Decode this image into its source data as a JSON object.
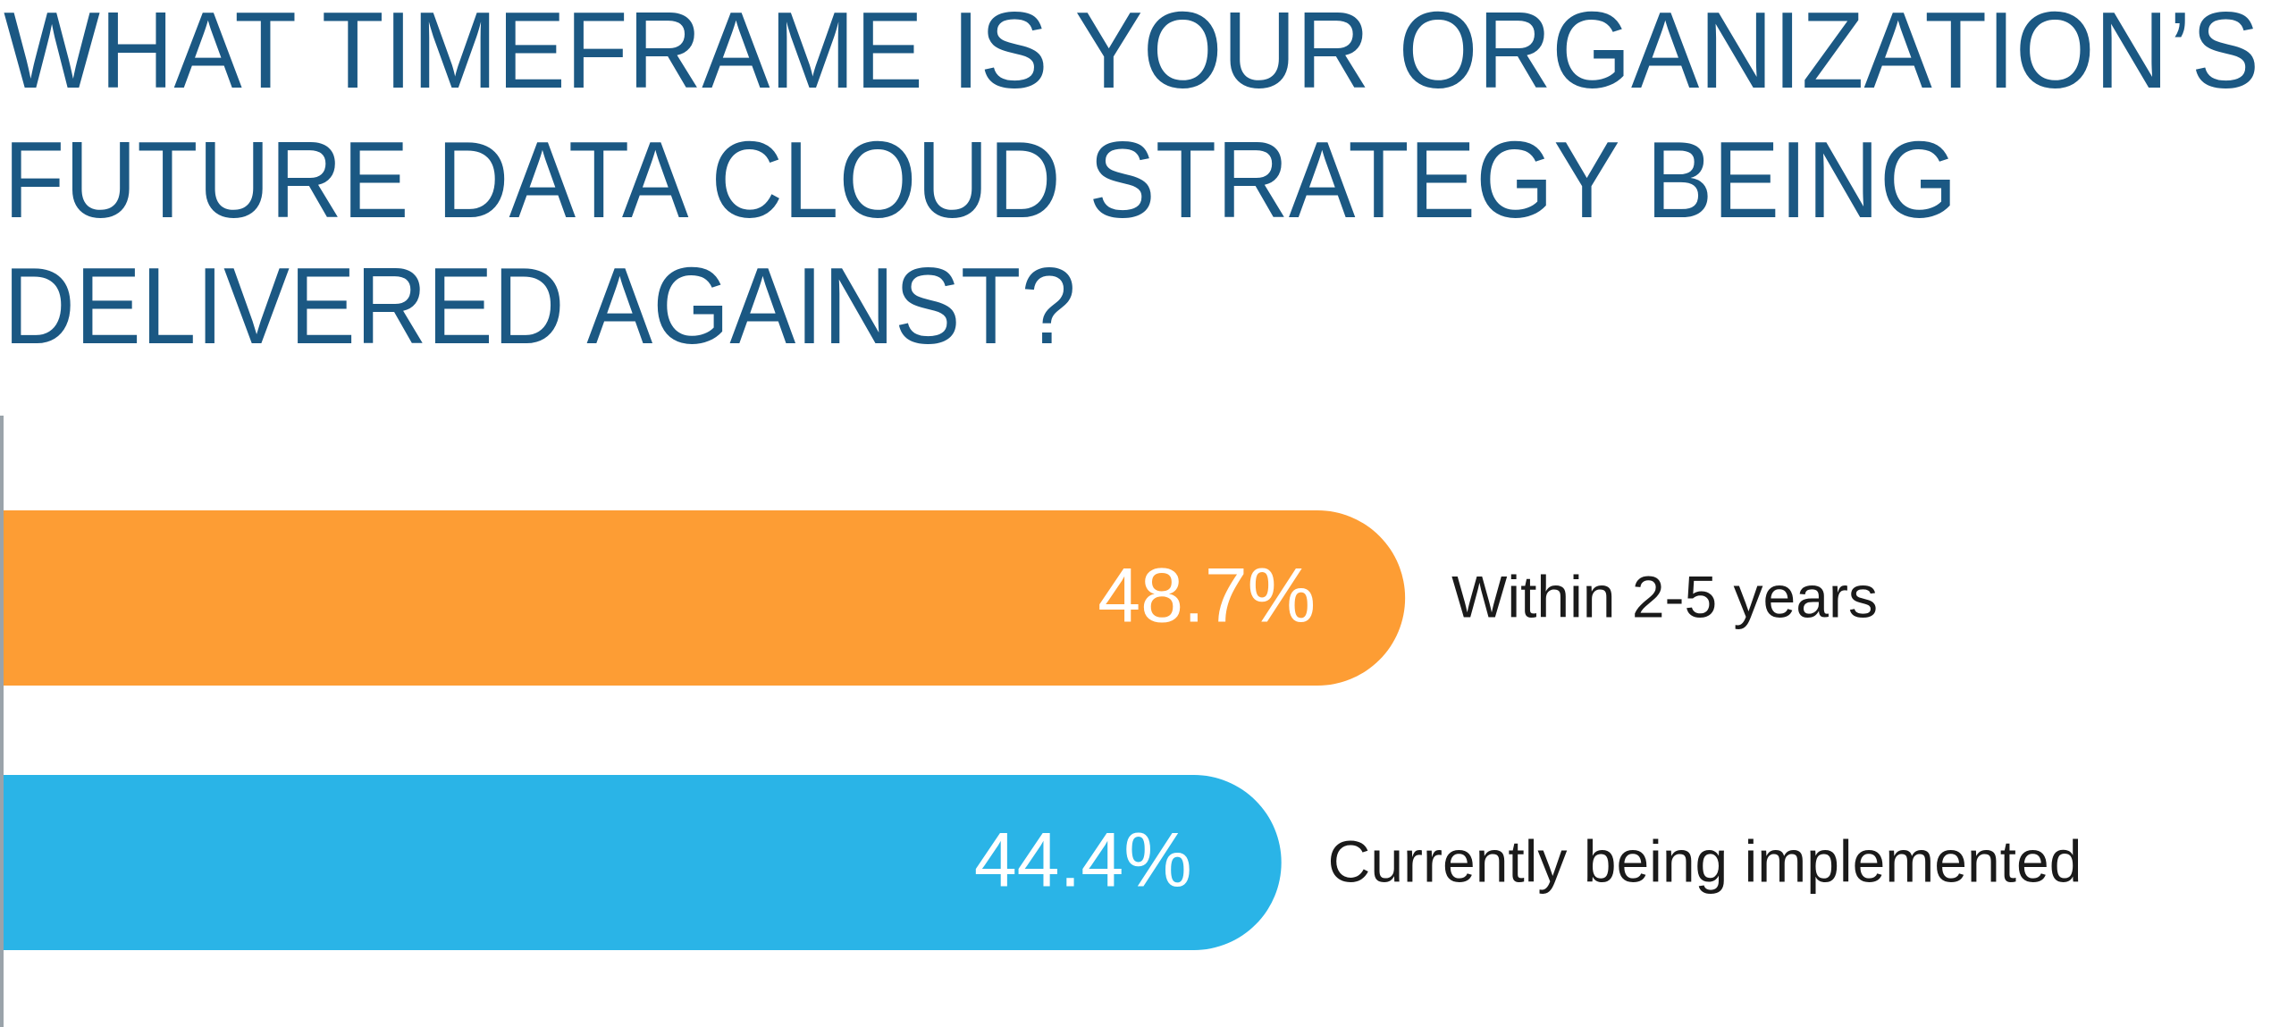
{
  "chart_data": {
    "type": "bar",
    "orientation": "horizontal",
    "title_lines": [
      "WHAT TIMEFRAME IS YOUR ORGANIZATION’S",
      "FUTURE DATA CLOUD STRATEGY BEING",
      "DELIVERED AGAINST?"
    ],
    "categories": [
      "Within 2-5 years",
      "Currently being implemented"
    ],
    "values": [
      48.7,
      44.4
    ],
    "value_labels": [
      "48.7%",
      "44.4%"
    ],
    "colors": [
      "#fd9d34",
      "#2ab4e7"
    ]
  }
}
